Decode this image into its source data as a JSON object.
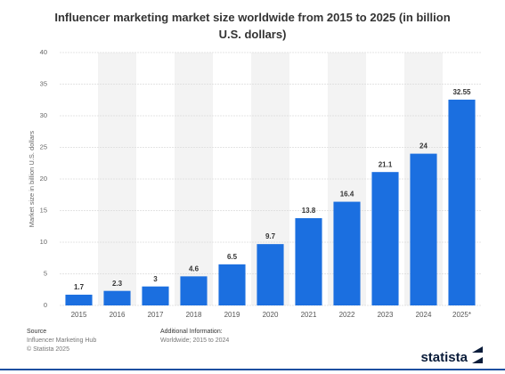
{
  "chart_data": {
    "type": "bar",
    "title": "Influencer marketing market size worldwide from 2015 to 2025 (in billion U.S. dollars)",
    "y_label": "Market size in billion U.S. dollars",
    "categories": [
      "2015",
      "2016",
      "2017",
      "2018",
      "2019",
      "2020",
      "2021",
      "2022",
      "2023",
      "2024",
      "2025*"
    ],
    "values": [
      1.7,
      2.3,
      3,
      4.6,
      6.5,
      9.7,
      13.8,
      16.4,
      21.1,
      24,
      32.55
    ],
    "color": "#1b6fe0",
    "ylim": [
      0,
      40
    ],
    "yticks": [
      0,
      5,
      10,
      15,
      20,
      25,
      30,
      35,
      40
    ],
    "grid": true
  },
  "footer": {
    "source_heading": "Source",
    "source": "Influencer Marketing Hub",
    "copyright": "© Statista 2025",
    "info_heading": "Additional Information:",
    "info": "Worldwide; 2015 to 2024"
  },
  "logo": "statista"
}
